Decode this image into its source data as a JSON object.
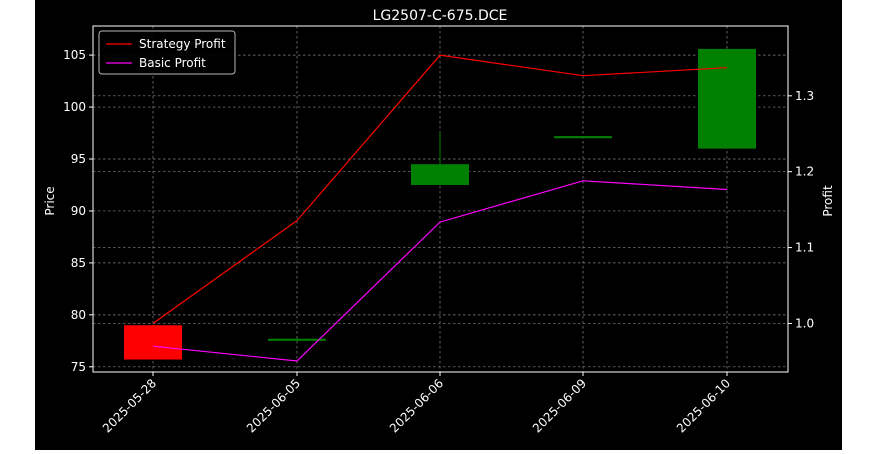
{
  "chart_data": {
    "type": "candlestick",
    "title": "LG2507-C-675.DCE",
    "xlabel": "",
    "ylabel_left": "Price",
    "ylabel_right": "Profit",
    "categories": [
      "2025-05-28",
      "2025-06-05",
      "2025-06-06",
      "2025-06-09",
      "2025-06-10"
    ],
    "candles": [
      {
        "open": 79.0,
        "high": 79.0,
        "low": 75.7,
        "close": 75.7
      },
      {
        "open": 77.5,
        "high": 77.7,
        "low": 77.4,
        "close": 77.7
      },
      {
        "open": 92.5,
        "high": 97.6,
        "low": 92.5,
        "close": 94.5
      },
      {
        "open": 97.0,
        "high": 97.2,
        "low": 97.0,
        "close": 97.2
      },
      {
        "open": 96.0,
        "high": 105.6,
        "low": 96.0,
        "close": 105.6
      }
    ],
    "ylim_left": [
      74.5,
      107.8
    ],
    "yticks_left": [
      75,
      80,
      85,
      90,
      95,
      100,
      105
    ],
    "ylim_right": [
      0.936,
      1.392
    ],
    "yticks_right": [
      1.0,
      1.1,
      1.2,
      1.3
    ],
    "series": [
      {
        "name": "Strategy Profit",
        "axis": "right",
        "color": "#ff0000",
        "values": [
          1.0,
          1.1355,
          1.3535,
          1.3265,
          1.337
        ]
      },
      {
        "name": "Basic Profit",
        "axis": "right",
        "color": "#ff00ff",
        "values": [
          0.97,
          0.9505,
          1.1335,
          1.188,
          1.1765
        ]
      }
    ],
    "up_color": "#008000",
    "down_color": "#ff0000",
    "grid": true,
    "legend_position": "upper-left"
  }
}
